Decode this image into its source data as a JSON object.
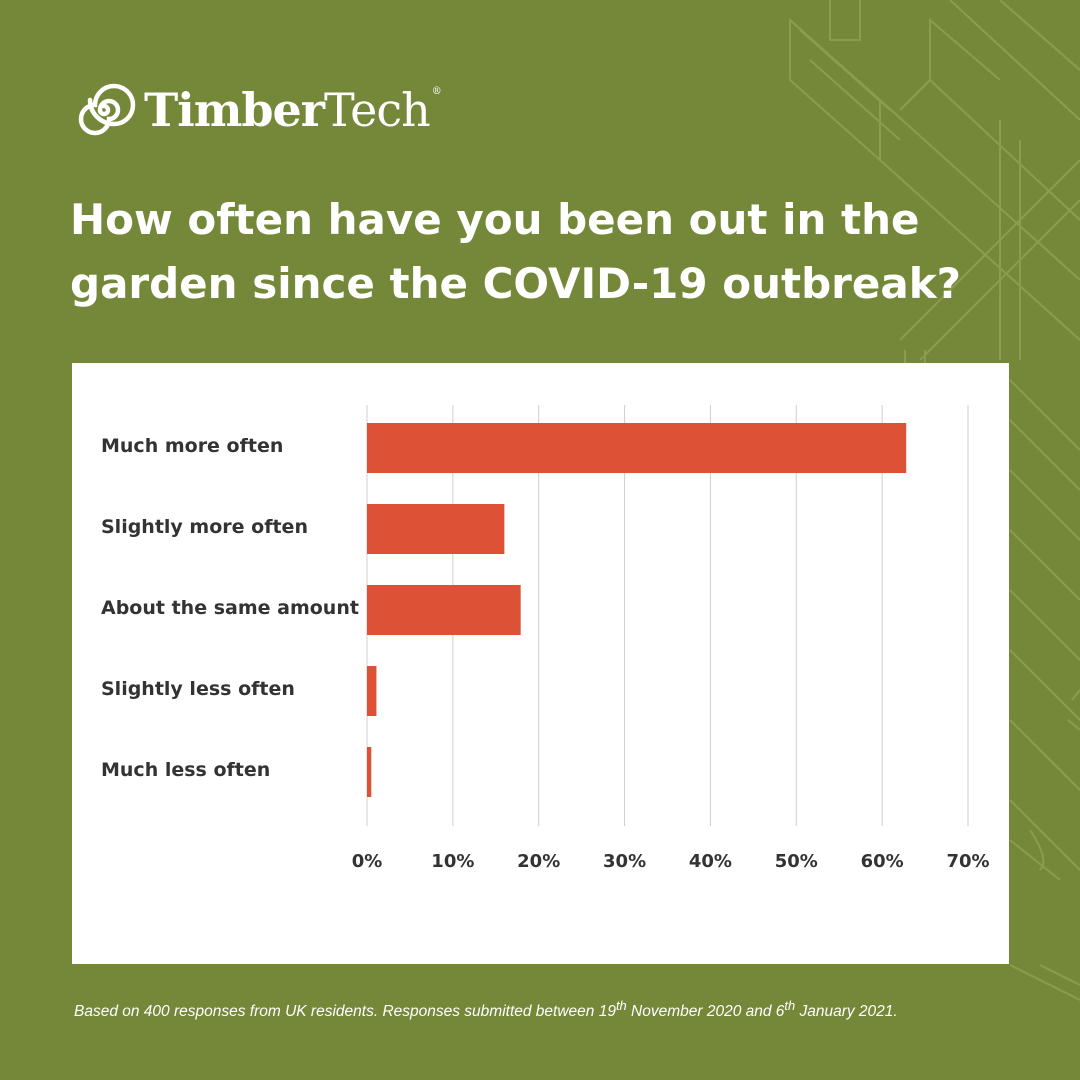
{
  "brand": {
    "name_bold": "Timber",
    "name_regular": "Tech",
    "registered": "®",
    "logo_icon": "spiral-icon"
  },
  "headline": {
    "line1": "How often have you been out in the",
    "line2": "garden since the COVID-19 outbreak?"
  },
  "colors": {
    "background": "#75883a",
    "bar": "#dd5136",
    "panel": "#ffffff",
    "text": "#333333",
    "grid": "#cfcfcf"
  },
  "chart_data": {
    "type": "bar",
    "orientation": "horizontal",
    "categories": [
      "Much more often",
      "Slightly more often",
      "About the same amount",
      "Slightly less often",
      "Much less often"
    ],
    "values": [
      62.8,
      16,
      17.9,
      1.1,
      0.5
    ],
    "xlim": [
      0,
      70
    ],
    "xticks": [
      0,
      10,
      20,
      30,
      40,
      50,
      60,
      70
    ],
    "xtick_labels": [
      "0%",
      "10%",
      "20%",
      "30%",
      "40%",
      "50%",
      "60%",
      "70%"
    ],
    "grid": true,
    "legend": "none"
  },
  "footnote": {
    "prefix": "Based on 400 responses from UK residents. Responses submitted between 19",
    "sup1": "th",
    "middle": " November 2020 and 6",
    "sup2": "th",
    "suffix": " January 2021."
  }
}
